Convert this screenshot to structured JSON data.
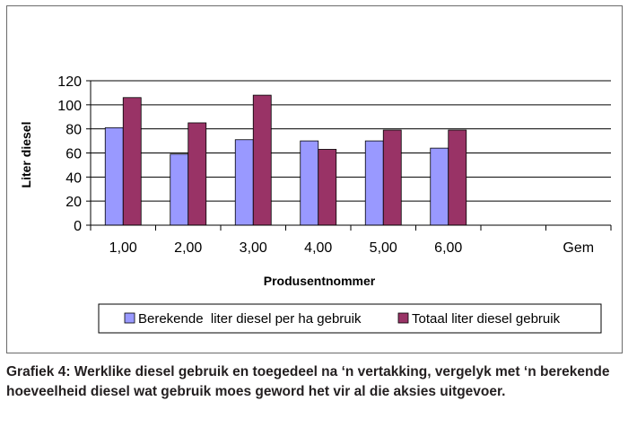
{
  "chart_data": {
    "type": "bar",
    "categories": [
      "1,00",
      "2,00",
      "3,00",
      "4,00",
      "5,00",
      "6,00",
      "",
      "Gem"
    ],
    "series": [
      {
        "name": "Berekende  liter diesel per ha gebruik",
        "color": "#9999ff",
        "values": [
          81,
          59,
          71,
          70,
          70,
          64,
          null,
          null
        ]
      },
      {
        "name": "Totaal liter diesel gebruik",
        "color": "#993366",
        "values": [
          106,
          85,
          108,
          63,
          79,
          79,
          null,
          null
        ]
      }
    ],
    "yticks": [
      "0",
      "20",
      "40",
      "60",
      "80",
      "100",
      "120"
    ],
    "ylim": [
      0,
      120
    ],
    "xlabel": "Produsentnommer",
    "ylabel": "Liter diesel",
    "grid": true,
    "legend_position": "bottom"
  },
  "caption": "Grafiek 4: Werklike diesel gebruik en toegedeel na ‘n vertakking, vergelyk met ‘n berekende hoeveelheid diesel wat gebruik moes geword het vir al die aksies uitgevoer."
}
